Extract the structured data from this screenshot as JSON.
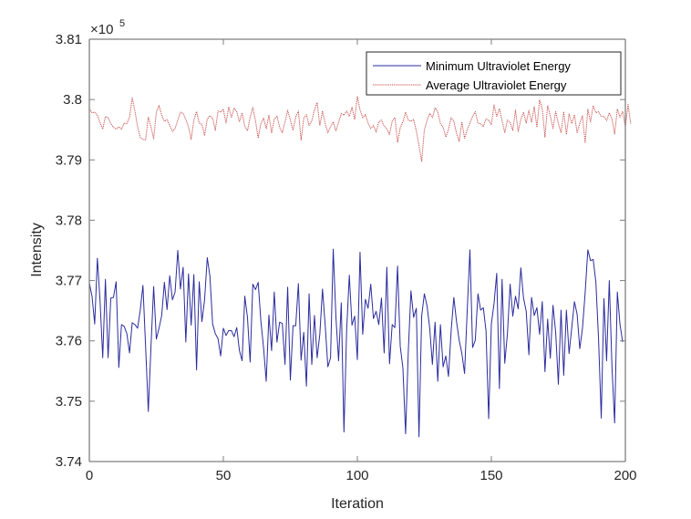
{
  "chart_data": {
    "type": "line",
    "title": "",
    "xlabel": "Iteration",
    "ylabel": "Intensity",
    "y_exponent_label": "×10",
    "y_exponent_power": "5",
    "y_scale_factor": 100000,
    "xlim": [
      0,
      200
    ],
    "ylim": [
      3.74,
      3.81
    ],
    "x_ticks": [
      0,
      50,
      100,
      150,
      200
    ],
    "x_tick_labels": [
      "0",
      "50",
      "100",
      "150",
      "200"
    ],
    "y_ticks": [
      3.74,
      3.75,
      3.76,
      3.77,
      3.78,
      3.79,
      3.8,
      3.81
    ],
    "y_tick_labels": [
      "3.74",
      "3.75",
      "3.76",
      "3.77",
      "3.78",
      "3.79",
      "3.8",
      "3.81"
    ],
    "grid": false,
    "legend_position": "top-right",
    "series": [
      {
        "name": "Minimum Ultraviolet Energy",
        "color": "#2b2b9e",
        "line_style": "solid",
        "values": [
          3.7696,
          3.7674,
          3.7628,
          3.7737,
          3.7666,
          3.7572,
          3.7702,
          3.7572,
          3.7671,
          3.7672,
          3.7698,
          3.7556,
          3.7627,
          3.7624,
          3.7612,
          3.758,
          3.763,
          3.7627,
          3.7621,
          3.7651,
          3.7692,
          3.759,
          3.7483,
          3.759,
          3.769,
          3.7603,
          3.7621,
          3.7642,
          3.7697,
          3.7652,
          3.7708,
          3.7668,
          3.7681,
          3.775,
          3.7686,
          3.7722,
          3.7598,
          3.7711,
          3.7626,
          3.771,
          3.7552,
          3.7698,
          3.7632,
          3.7668,
          3.7738,
          3.7707,
          3.7628,
          3.7612,
          3.7604,
          3.7575,
          3.7621,
          3.7609,
          3.7617,
          3.7617,
          3.7607,
          3.7622,
          3.7584,
          3.7567,
          3.7674,
          3.7639,
          3.7565,
          3.7694,
          3.7685,
          3.7697,
          3.7633,
          3.7589,
          3.7533,
          3.7643,
          3.7584,
          3.7681,
          3.7598,
          3.7631,
          3.7629,
          3.7561,
          3.7689,
          3.7535,
          3.7625,
          3.7625,
          3.7695,
          3.7568,
          3.7614,
          3.7525,
          3.7678,
          3.7561,
          3.7642,
          3.7572,
          3.7611,
          3.7686,
          3.7626,
          3.7557,
          3.7572,
          3.7752,
          3.764,
          3.7567,
          3.7663,
          3.7449,
          3.7617,
          3.7709,
          3.7626,
          3.7641,
          3.7569,
          3.7747,
          3.7611,
          3.7669,
          3.7654,
          3.7694,
          3.7637,
          3.7649,
          3.7627,
          3.7671,
          3.758,
          3.7722,
          3.7562,
          3.7627,
          3.7622,
          3.7724,
          3.7591,
          3.7555,
          3.7446,
          3.7582,
          3.7683,
          3.7639,
          3.7654,
          3.7441,
          3.7641,
          3.7678,
          3.7658,
          3.7621,
          3.7561,
          3.7631,
          3.7533,
          3.7627,
          3.7557,
          3.7575,
          3.7541,
          3.7617,
          3.7672,
          3.7632,
          3.7601,
          3.7579,
          3.7546,
          3.7651,
          3.7751,
          3.7589,
          3.7601,
          3.7678,
          3.7651,
          3.7655,
          3.7617,
          3.7471,
          3.7628,
          3.7662,
          3.7712,
          3.7521,
          3.7702,
          3.7563,
          3.7612,
          3.7694,
          3.7641,
          3.7674,
          3.7653,
          3.7721,
          3.7671,
          3.7649,
          3.7577,
          3.7672,
          3.7642,
          3.7655,
          3.7611,
          3.7665,
          3.7549,
          3.7636,
          3.7571,
          3.7659,
          3.7614,
          3.7528,
          3.7651,
          3.7543,
          3.7651,
          3.7579,
          3.7622,
          3.7665,
          3.7644,
          3.7587,
          3.7621,
          3.768,
          3.7751,
          3.7733,
          3.7735,
          3.7697,
          3.7603,
          3.7472,
          3.767,
          3.7567,
          3.77,
          3.7557,
          3.7464,
          3.7681,
          3.7627,
          3.7598
        ]
      },
      {
        "name": "Average Ultraviolet Energy",
        "color": "#c8504f",
        "line_style": "dotted",
        "values": [
          3.7985,
          3.7978,
          3.7979,
          3.7974,
          3.7962,
          3.7951,
          3.7972,
          3.797,
          3.796,
          3.7954,
          3.7951,
          3.7955,
          3.7951,
          3.7961,
          3.796,
          3.7971,
          3.8003,
          3.7981,
          3.7955,
          3.7937,
          3.7934,
          3.7933,
          3.7971,
          3.7955,
          3.7935,
          3.7979,
          3.799,
          3.7974,
          3.7964,
          3.7967,
          3.7957,
          3.7947,
          3.7952,
          3.7966,
          3.7979,
          3.7977,
          3.7967,
          3.7955,
          3.7934,
          3.7966,
          3.798,
          3.7961,
          3.7959,
          3.794,
          3.7968,
          3.7973,
          3.7969,
          3.7949,
          3.7981,
          3.7979,
          3.7984,
          3.7961,
          3.7988,
          3.797,
          3.7986,
          3.798,
          3.7963,
          3.7978,
          3.7956,
          3.7948,
          3.7971,
          3.7987,
          3.7965,
          3.7936,
          3.796,
          3.7969,
          3.7952,
          3.7974,
          3.7945,
          3.7967,
          3.7973,
          3.7954,
          3.7945,
          3.7963,
          3.7982,
          3.7966,
          3.7949,
          3.7971,
          3.7981,
          3.7933,
          3.7969,
          3.7975,
          3.7957,
          3.7965,
          3.7983,
          3.7995,
          3.7957,
          3.7981,
          3.796,
          3.7945,
          3.7955,
          3.7963,
          3.7948,
          3.7962,
          3.7977,
          3.7974,
          3.7981,
          3.7972,
          3.7987,
          3.7967,
          3.8005,
          3.7983,
          3.797,
          3.7975,
          3.7961,
          3.7952,
          3.7957,
          3.7946,
          3.7963,
          3.7966,
          3.7956,
          3.7952,
          3.7942,
          3.7964,
          3.797,
          3.7929,
          3.7953,
          3.7963,
          3.7979,
          3.7966,
          3.7964,
          3.7967,
          3.7948,
          3.7924,
          3.7897,
          3.795,
          3.7965,
          3.7977,
          3.797,
          3.7986,
          3.798,
          3.796,
          3.7954,
          3.7938,
          3.795,
          3.797,
          3.7964,
          3.7944,
          3.7931,
          3.7963,
          3.7936,
          3.795,
          3.7961,
          3.7972,
          3.798,
          3.7961,
          3.796,
          3.7955,
          3.7968,
          3.7966,
          3.7958,
          3.7991,
          3.7972,
          3.7985,
          3.7965,
          3.7945,
          3.7966,
          3.7962,
          3.7949,
          3.7982,
          3.7947,
          3.7967,
          3.7979,
          3.7961,
          3.7982,
          3.7962,
          3.7988,
          3.7954,
          3.7999,
          3.7985,
          3.7938,
          3.799,
          3.7973,
          3.7952,
          3.798,
          3.796,
          3.7945,
          3.798,
          3.7942,
          3.7976,
          3.796,
          3.7975,
          3.7945,
          3.7961,
          3.7973,
          3.7928,
          3.7984,
          3.7963,
          3.799,
          3.7978,
          3.798,
          3.7972,
          3.7972,
          3.7965,
          3.7978,
          3.7968,
          3.7943,
          3.7984,
          3.7971,
          3.798,
          3.7955,
          3.7992,
          3.796
        ]
      }
    ]
  }
}
